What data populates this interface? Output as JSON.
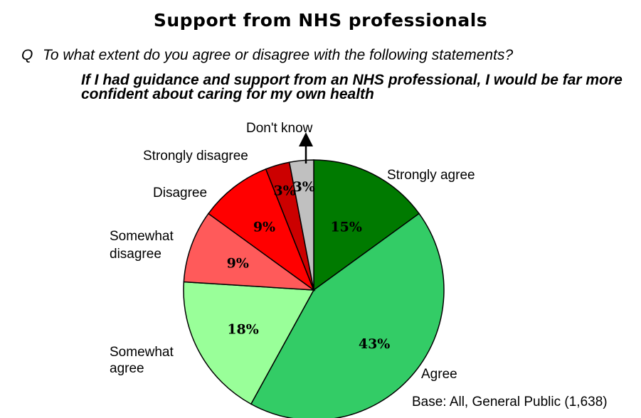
{
  "chart_data": {
    "type": "pie",
    "title": "Support from NHS professionals",
    "question_marker": "Q",
    "question": "To what extent do you agree or disagree with the following statements?",
    "statement": "If I had guidance and support from an NHS professional, I would be far more confident about caring for my own health",
    "base_note": "Base: All, General Public (1,638)",
    "slices": [
      {
        "category": "Strongly agree",
        "value": 15,
        "label": "15%",
        "color": "#007A00"
      },
      {
        "category": "Agree",
        "value": 43,
        "label": "43%",
        "color": "#33CC66"
      },
      {
        "category": "Somewhat agree",
        "value": 18,
        "label": "18%",
        "color": "#99FF99"
      },
      {
        "category": "Somewhat disagree",
        "value": 9,
        "label": "9%",
        "color": "#FF5A5A"
      },
      {
        "category": "Disagree",
        "value": 9,
        "label": "9%",
        "color": "#FF0000"
      },
      {
        "category": "Strongly disagree",
        "value": 3,
        "label": "3%",
        "color": "#CC0000"
      },
      {
        "category": "Don't know",
        "value": 3,
        "label": "3%",
        "color": "#C0C0C0"
      }
    ]
  }
}
